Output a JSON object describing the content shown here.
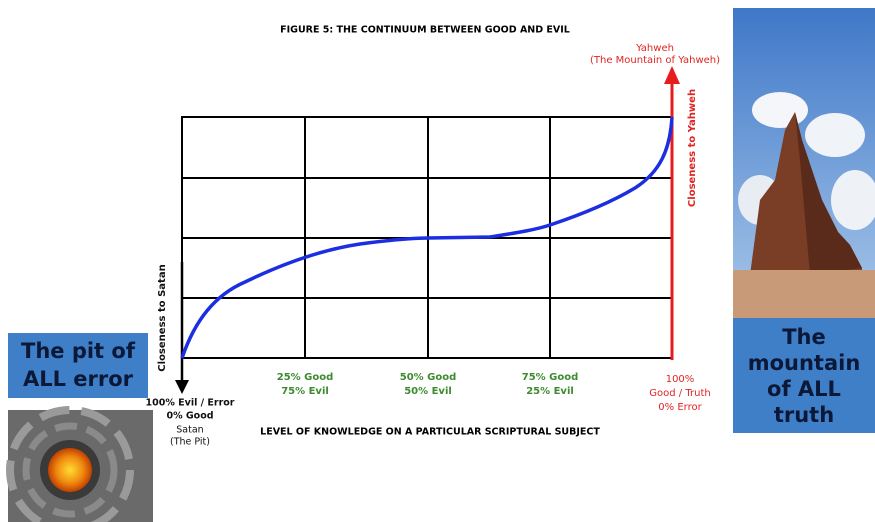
{
  "title": "FIGURE 5: THE CONTINUUM BETWEEN GOOD AND EVIL",
  "top_label": [
    "Yahweh",
    "(The Mountain of Yahweh)"
  ],
  "y_axis": {
    "top": "Closeness to Yahweh",
    "bottom": "Closeness to Satan"
  },
  "x_labels": [
    [
      "100% Evil / Error",
      "0% Good",
      "Satan",
      "(The Pit)"
    ],
    [
      "25% Good",
      "75% Evil"
    ],
    [
      "50% Good",
      "50% Evil"
    ],
    [
      "75% Good",
      "25% Evil"
    ],
    [
      "100%",
      "Good / Truth",
      "0% Error"
    ]
  ],
  "x_axis_title": "LEVEL OF KNOWLEDGE ON A PARTICULAR SCRIPTURAL SUBJECT",
  "left_panel": {
    "caption": [
      "The pit of",
      "ALL error"
    ]
  },
  "right_panel": {
    "caption": [
      "The",
      "mountain",
      "of ALL",
      "truth"
    ]
  }
}
